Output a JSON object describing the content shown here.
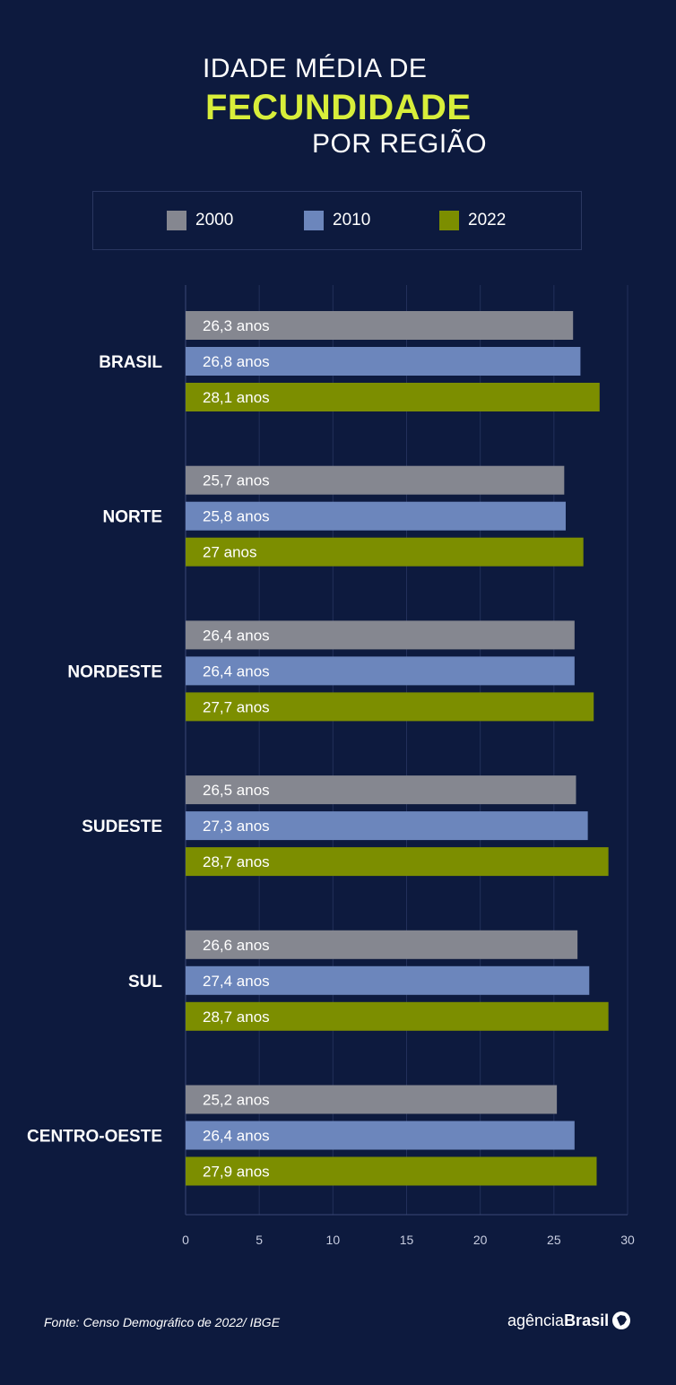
{
  "title": {
    "line1": "IDADE MÉDIA DE",
    "line2": "FECUNDIDADE",
    "line3": "POR REGIÃO"
  },
  "legend": [
    {
      "label": "2000",
      "color": "#858790"
    },
    {
      "label": "2010",
      "color": "#6c86bc"
    },
    {
      "label": "2022",
      "color": "#7c8e00"
    }
  ],
  "chart_data": {
    "type": "bar",
    "orientation": "horizontal",
    "categories": [
      "BRASIL",
      "NORTE",
      "NORDESTE",
      "SUDESTE",
      "SUL",
      "CENTRO-OESTE"
    ],
    "series": [
      {
        "name": "2000",
        "color": "#858790",
        "values": [
          26.3,
          25.7,
          26.4,
          26.5,
          26.6,
          25.2
        ],
        "labels": [
          "26,3 anos",
          "25,7 anos",
          "26,4 anos",
          "26,5 anos",
          "26,6 anos",
          "25,2 anos"
        ]
      },
      {
        "name": "2010",
        "color": "#6c86bc",
        "values": [
          26.8,
          25.8,
          26.4,
          27.3,
          27.4,
          26.4
        ],
        "labels": [
          "26,8 anos",
          "25,8 anos",
          "26,4 anos",
          "27,3 anos",
          "27,4 anos",
          "26,4 anos"
        ]
      },
      {
        "name": "2022",
        "color": "#7c8e00",
        "values": [
          28.1,
          27,
          27.7,
          28.7,
          28.7,
          27.9
        ],
        "labels": [
          "28,1 anos",
          "27 anos",
          "27,7 anos",
          "28,7 anos",
          "28,7 anos",
          "27,9 anos"
        ]
      }
    ],
    "xlim": [
      0,
      30
    ],
    "xticks": [
      0,
      5,
      10,
      15,
      20,
      25,
      30
    ],
    "grid": true
  },
  "footer": {
    "source": "Fonte:  Censo Demográfico de 2022/ IBGE",
    "logo_prefix": "agência",
    "logo_brand": "Brasil"
  }
}
